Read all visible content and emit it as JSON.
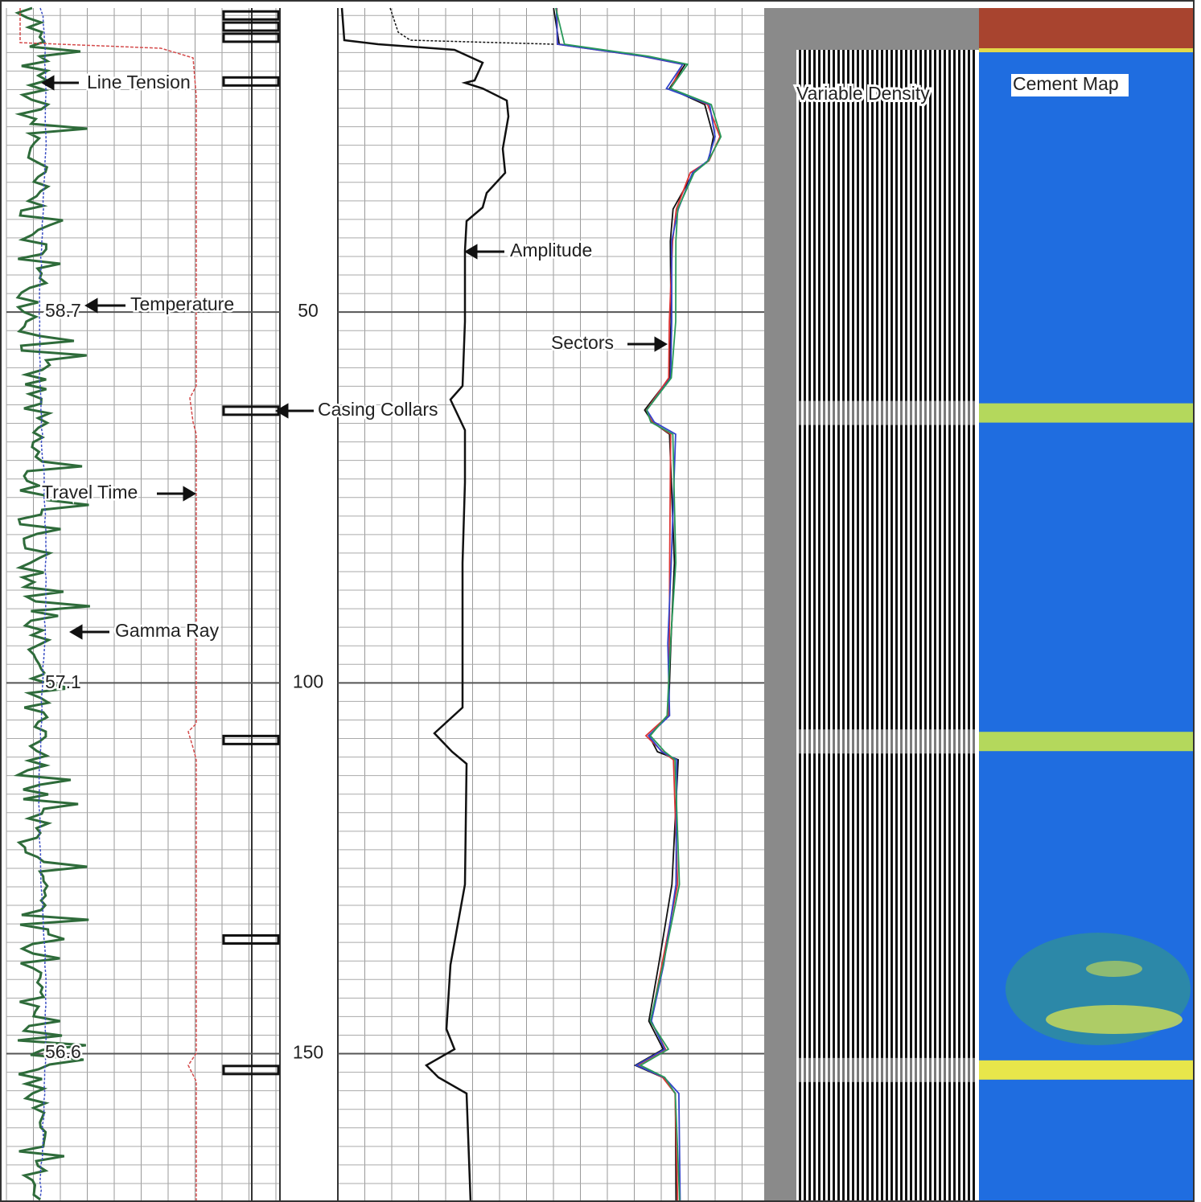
{
  "chart_data": {
    "type": "well-log",
    "ylim": [
      9,
      170
    ],
    "yticks": [
      50,
      100,
      150
    ],
    "temperature_labels": [
      58.7,
      57.1,
      56.6
    ],
    "curve_labels": [
      "Line Tension",
      "Temperature",
      "Travel Time",
      "Gamma Ray",
      "Casing Collars",
      "Amplitude",
      "Sectors",
      "Variable Density",
      "Cement Map"
    ],
    "casing_collars": [
      10,
      11.5,
      13,
      18.9,
      63.3,
      107.7,
      134.6,
      152.2
    ],
    "cement_map_bands": [
      63.6,
      107.9,
      152.2
    ]
  }
}
